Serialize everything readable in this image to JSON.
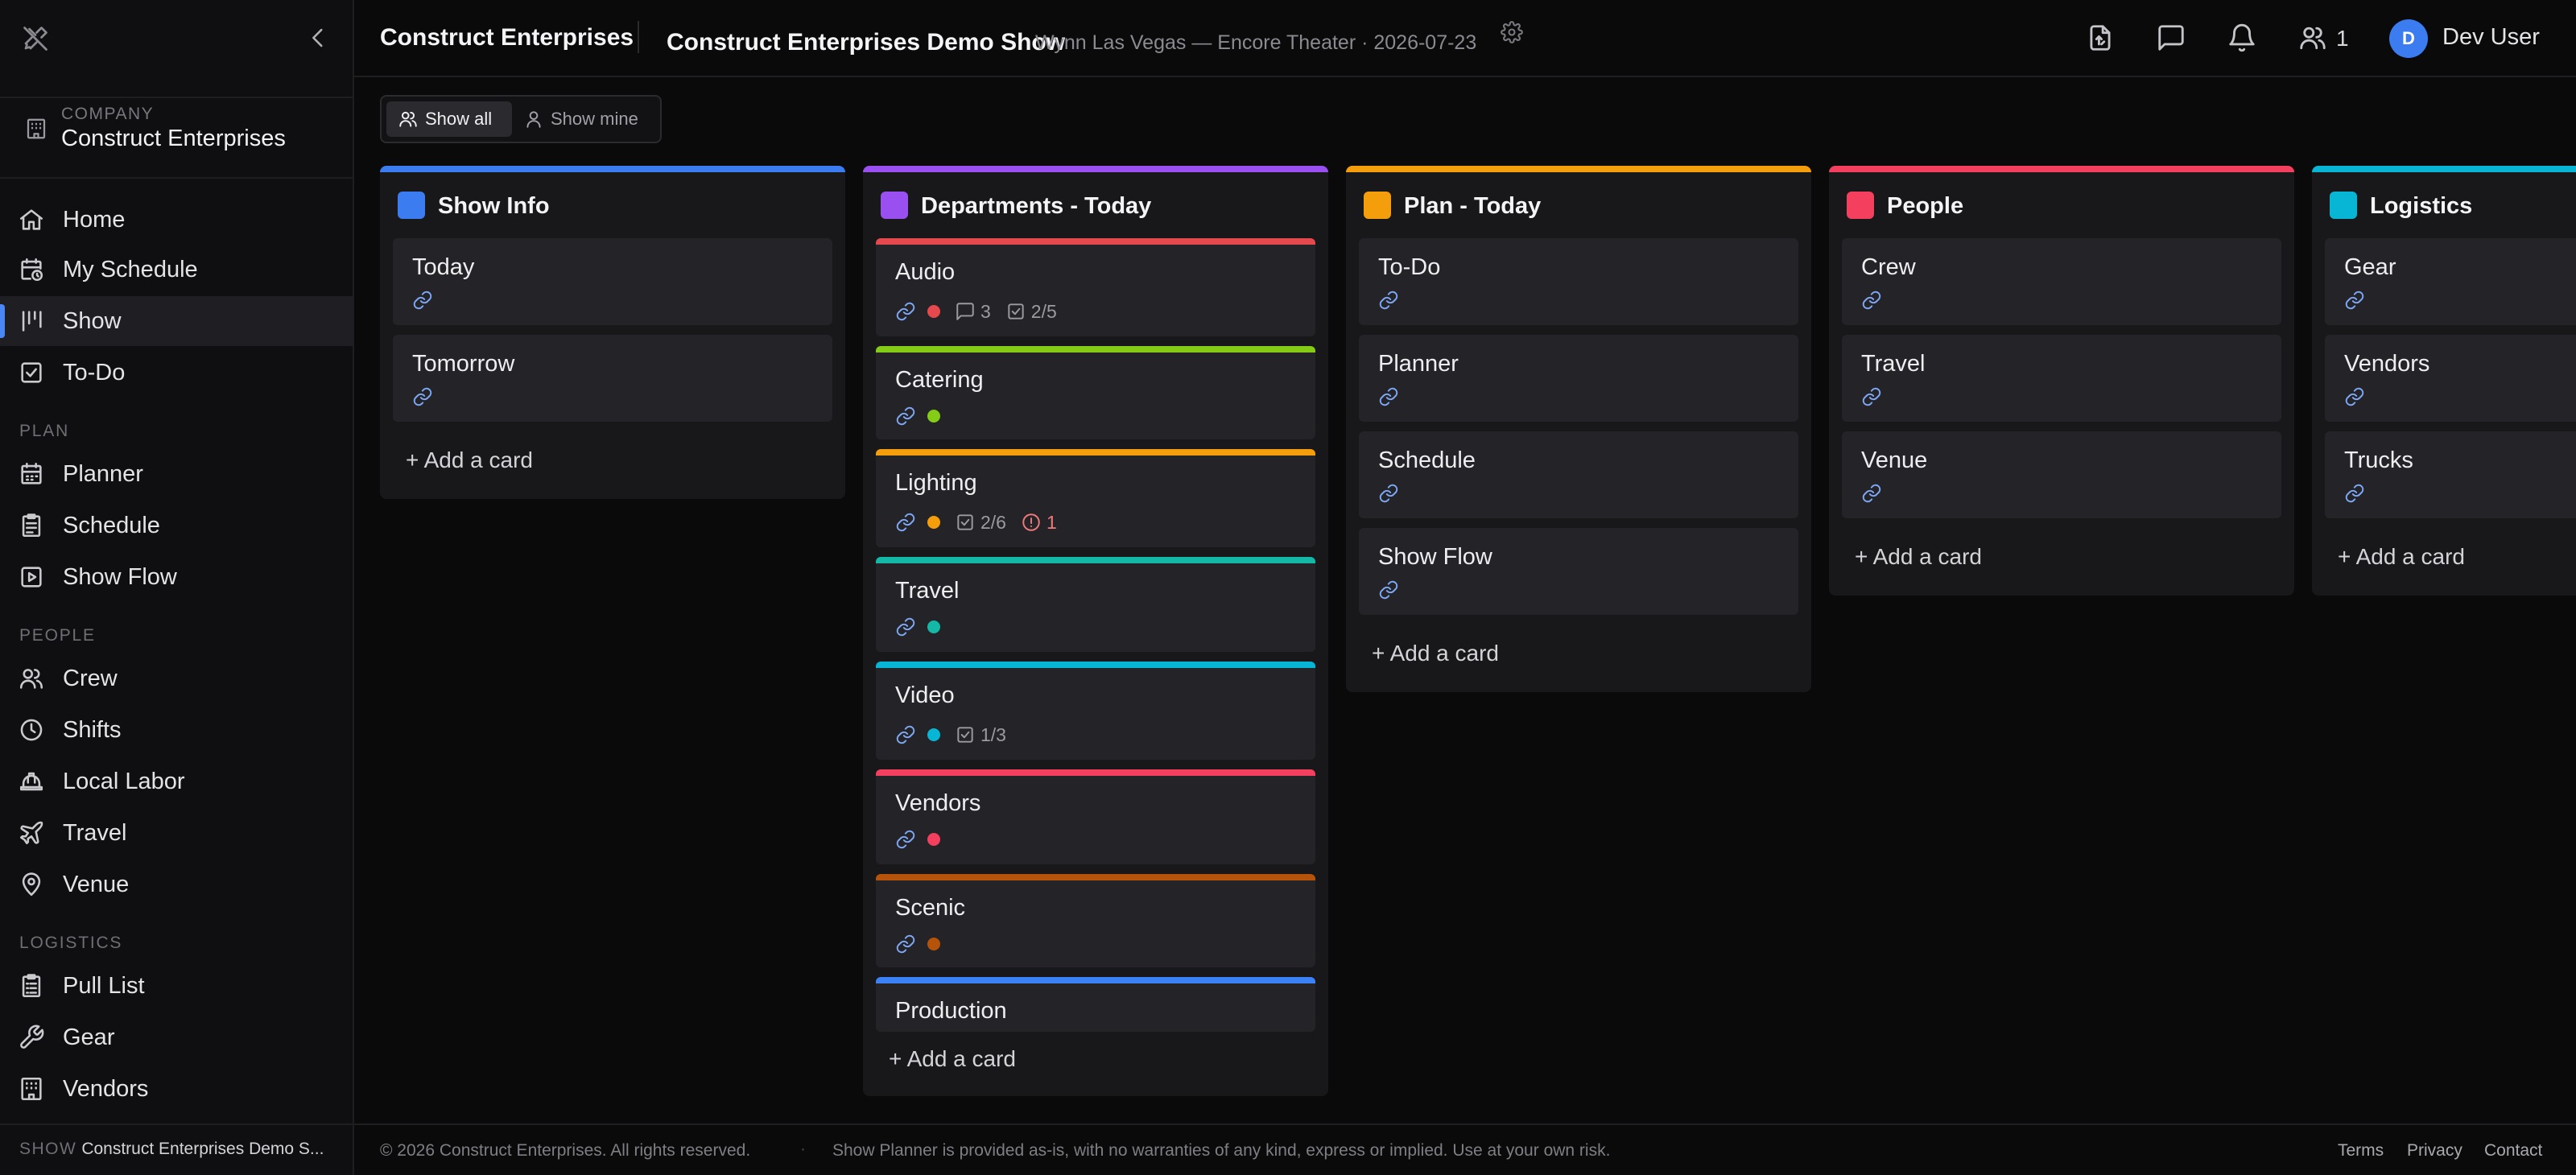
{
  "sidebar": {
    "company_label": "COMPANY",
    "company_name": "Construct Enterprises",
    "main_items": [
      {
        "label": "Home",
        "icon": "home-icon"
      },
      {
        "label": "My Schedule",
        "icon": "calendar-clock-icon"
      },
      {
        "label": "Show",
        "icon": "board-columns-icon",
        "active": true
      },
      {
        "label": "To-Do",
        "icon": "checkbox-icon"
      }
    ],
    "sections": [
      {
        "label": "PLAN",
        "items": [
          {
            "label": "Planner",
            "icon": "calendar-icon"
          },
          {
            "label": "Schedule",
            "icon": "clipboard-icon"
          },
          {
            "label": "Show Flow",
            "icon": "play-square-icon"
          }
        ]
      },
      {
        "label": "PEOPLE",
        "items": [
          {
            "label": "Crew",
            "icon": "users-icon"
          },
          {
            "label": "Shifts",
            "icon": "clock-icon"
          },
          {
            "label": "Local Labor",
            "icon": "hard-hat-icon"
          },
          {
            "label": "Travel",
            "icon": "plane-icon"
          },
          {
            "label": "Venue",
            "icon": "map-pin-icon"
          }
        ]
      },
      {
        "label": "LOGISTICS",
        "items": [
          {
            "label": "Pull List",
            "icon": "clipboard-list-icon"
          },
          {
            "label": "Gear",
            "icon": "wrench-icon"
          },
          {
            "label": "Vendors",
            "icon": "building-icon"
          }
        ]
      }
    ],
    "footer_label": "SHOW",
    "footer_value": "Construct Enterprises Demo S..."
  },
  "header": {
    "company": "Construct Enterprises",
    "show_title": "Construct Enterprises Demo Show",
    "show_meta": "Wynn Las Vegas — Encore Theater · 2026-07-23",
    "people_count": "1",
    "avatar_initial": "D",
    "user_name": "Dev User"
  },
  "filter": {
    "show_all": "Show all",
    "show_mine": "Show mine",
    "selected": "Show all"
  },
  "board": {
    "add_card_label": "+ Add a card",
    "columns": [
      {
        "title": "Show Info",
        "color": "#3b7cf0",
        "cards": [
          {
            "title": "Today"
          },
          {
            "title": "Tomorrow"
          }
        ]
      },
      {
        "title": "Departments - Today",
        "color": "#9a4ff0",
        "cards": [
          {
            "title": "Audio",
            "color": "#e5484d",
            "comments": "3",
            "checklist": "2/5"
          },
          {
            "title": "Catering",
            "color": "#84cc16"
          },
          {
            "title": "Lighting",
            "color": "#f59e0b",
            "checklist": "2/6",
            "alerts": "1"
          },
          {
            "title": "Travel",
            "color": "#14b8a6"
          },
          {
            "title": "Video",
            "color": "#06b6d4",
            "checklist": "1/3"
          },
          {
            "title": "Vendors",
            "color": "#f43f5e"
          },
          {
            "title": "Scenic",
            "color": "#b45309"
          },
          {
            "title": "Production",
            "color": "#3b82f6"
          }
        ]
      },
      {
        "title": "Plan - Today",
        "color": "#f59e0b",
        "cards": [
          {
            "title": "To-Do"
          },
          {
            "title": "Planner"
          },
          {
            "title": "Schedule"
          },
          {
            "title": "Show Flow"
          }
        ]
      },
      {
        "title": "People",
        "color": "#f43f5e",
        "cards": [
          {
            "title": "Crew"
          },
          {
            "title": "Travel"
          },
          {
            "title": "Venue"
          }
        ]
      },
      {
        "title": "Logistics",
        "color": "#06b6d4",
        "cards": [
          {
            "title": "Gear"
          },
          {
            "title": "Vendors"
          },
          {
            "title": "Trucks"
          }
        ]
      }
    ]
  },
  "footer": {
    "copyright": "© 2026 Construct Enterprises. All rights reserved.",
    "separator": "·",
    "disclaimer": "Show Planner is provided as-is, with no warranties of any kind, express or implied. Use at your own risk.",
    "links": [
      "Terms",
      "Privacy",
      "Contact"
    ]
  }
}
